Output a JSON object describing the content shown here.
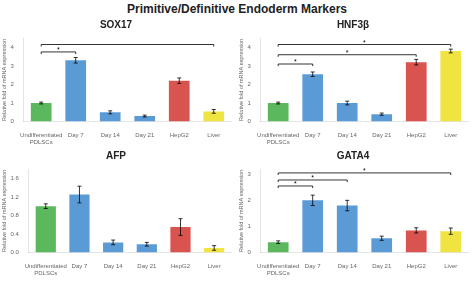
{
  "title": "Primitive/Definitive Endoderm Markers",
  "chart_data": [
    {
      "type": "bar",
      "title": "SOX17",
      "categories": [
        "Undifferentiated\nPDLSCs",
        "Day 7",
        "Day 14",
        "Day 21",
        "HepG2",
        "Liver"
      ],
      "values": [
        1.0,
        3.3,
        0.5,
        0.3,
        2.2,
        0.55
      ],
      "errors": [
        0.05,
        0.15,
        0.08,
        0.05,
        0.15,
        0.1
      ],
      "colors": [
        "#5cb85c",
        "#5b9bd5",
        "#5b9bd5",
        "#5b9bd5",
        "#d9534f",
        "#f0e442"
      ],
      "ylabel": "Relative fold of mRNA expression",
      "ylim": [
        0,
        4.5
      ],
      "yticks": [
        0,
        1,
        2,
        3,
        4
      ],
      "grid": false,
      "brackets": [
        {
          "from": "Undifferentiated\nPDLSCs",
          "to": "Day 7",
          "y": 3.75,
          "label": "*"
        },
        {
          "from": "Undifferentiated\nPDLSCs",
          "to": "Liver",
          "y": 4.15
        }
      ]
    },
    {
      "type": "bar",
      "title": "HNF3β",
      "categories": [
        "Undifferentiated\nPDLSCs",
        "Day 7",
        "Day 14",
        "Day 21",
        "HepG2",
        "Liver"
      ],
      "values": [
        1.0,
        2.55,
        1.0,
        0.4,
        3.2,
        3.8
      ],
      "errors": [
        0.05,
        0.12,
        0.1,
        0.06,
        0.15,
        0.1
      ],
      "colors": [
        "#5cb85c",
        "#5b9bd5",
        "#5b9bd5",
        "#5b9bd5",
        "#d9534f",
        "#f0e442"
      ],
      "ylabel": "Relative fold of mRNA expression",
      "ylim": [
        0,
        4.5
      ],
      "yticks": [
        0,
        1,
        2,
        3,
        4
      ],
      "grid": false,
      "brackets": [
        {
          "from": "Undifferentiated\nPDLSCs",
          "to": "Day 7",
          "y": 3.1,
          "label": "*"
        },
        {
          "from": "Undifferentiated\nPDLSCs",
          "to": "HepG2",
          "y": 3.6,
          "label": "*"
        },
        {
          "from": "Undifferentiated\nPDLSCs",
          "to": "Liver",
          "y": 4.15,
          "label": "*"
        }
      ]
    },
    {
      "type": "bar",
      "title": "AFP",
      "categories": [
        "Undifferentiated\nPDLSCs",
        "Day 7",
        "Day 14",
        "Day 21",
        "HepG2",
        "Liver"
      ],
      "values": [
        1.0,
        1.25,
        0.22,
        0.18,
        0.55,
        0.1
      ],
      "errors": [
        0.05,
        0.18,
        0.05,
        0.04,
        0.18,
        0.05
      ],
      "colors": [
        "#5cb85c",
        "#5b9bd5",
        "#5b9bd5",
        "#5b9bd5",
        "#d9534f",
        "#f0e442"
      ],
      "ylabel": "Relative fold of mRNA expression",
      "ylim": [
        0,
        1.8
      ],
      "yticks": [
        {
          "value": 0,
          "label": "0.0"
        },
        0.4,
        0.8,
        1.2,
        1.6
      ],
      "grid": false,
      "brackets": []
    },
    {
      "type": "bar",
      "title": "GATA4",
      "categories": [
        "Undifferentiated\nPDLSCs",
        "Day 7",
        "Day 14",
        "Day 21",
        "HepG2",
        "Liver"
      ],
      "values": [
        0.4,
        2.0,
        1.8,
        0.55,
        0.85,
        0.82
      ],
      "errors": [
        0.05,
        0.2,
        0.2,
        0.08,
        0.1,
        0.12
      ],
      "colors": [
        "#5cb85c",
        "#5b9bd5",
        "#5b9bd5",
        "#5b9bd5",
        "#d9534f",
        "#f0e442"
      ],
      "ylabel": "Relative fold of mRNA expression",
      "ylim": [
        0,
        3.2
      ],
      "yticks": [
        0,
        1,
        2,
        3
      ],
      "grid": false,
      "brackets": [
        {
          "from": "Undifferentiated\nPDLSCs",
          "to": "Day 7",
          "y": 2.55,
          "label": "*"
        },
        {
          "from": "Undifferentiated\nPDLSCs",
          "to": "Day 14",
          "y": 2.78,
          "label": "*"
        },
        {
          "from": "Undifferentiated\nPDLSCs",
          "to": "Liver",
          "y": 3.05,
          "label": "*"
        }
      ]
    }
  ]
}
